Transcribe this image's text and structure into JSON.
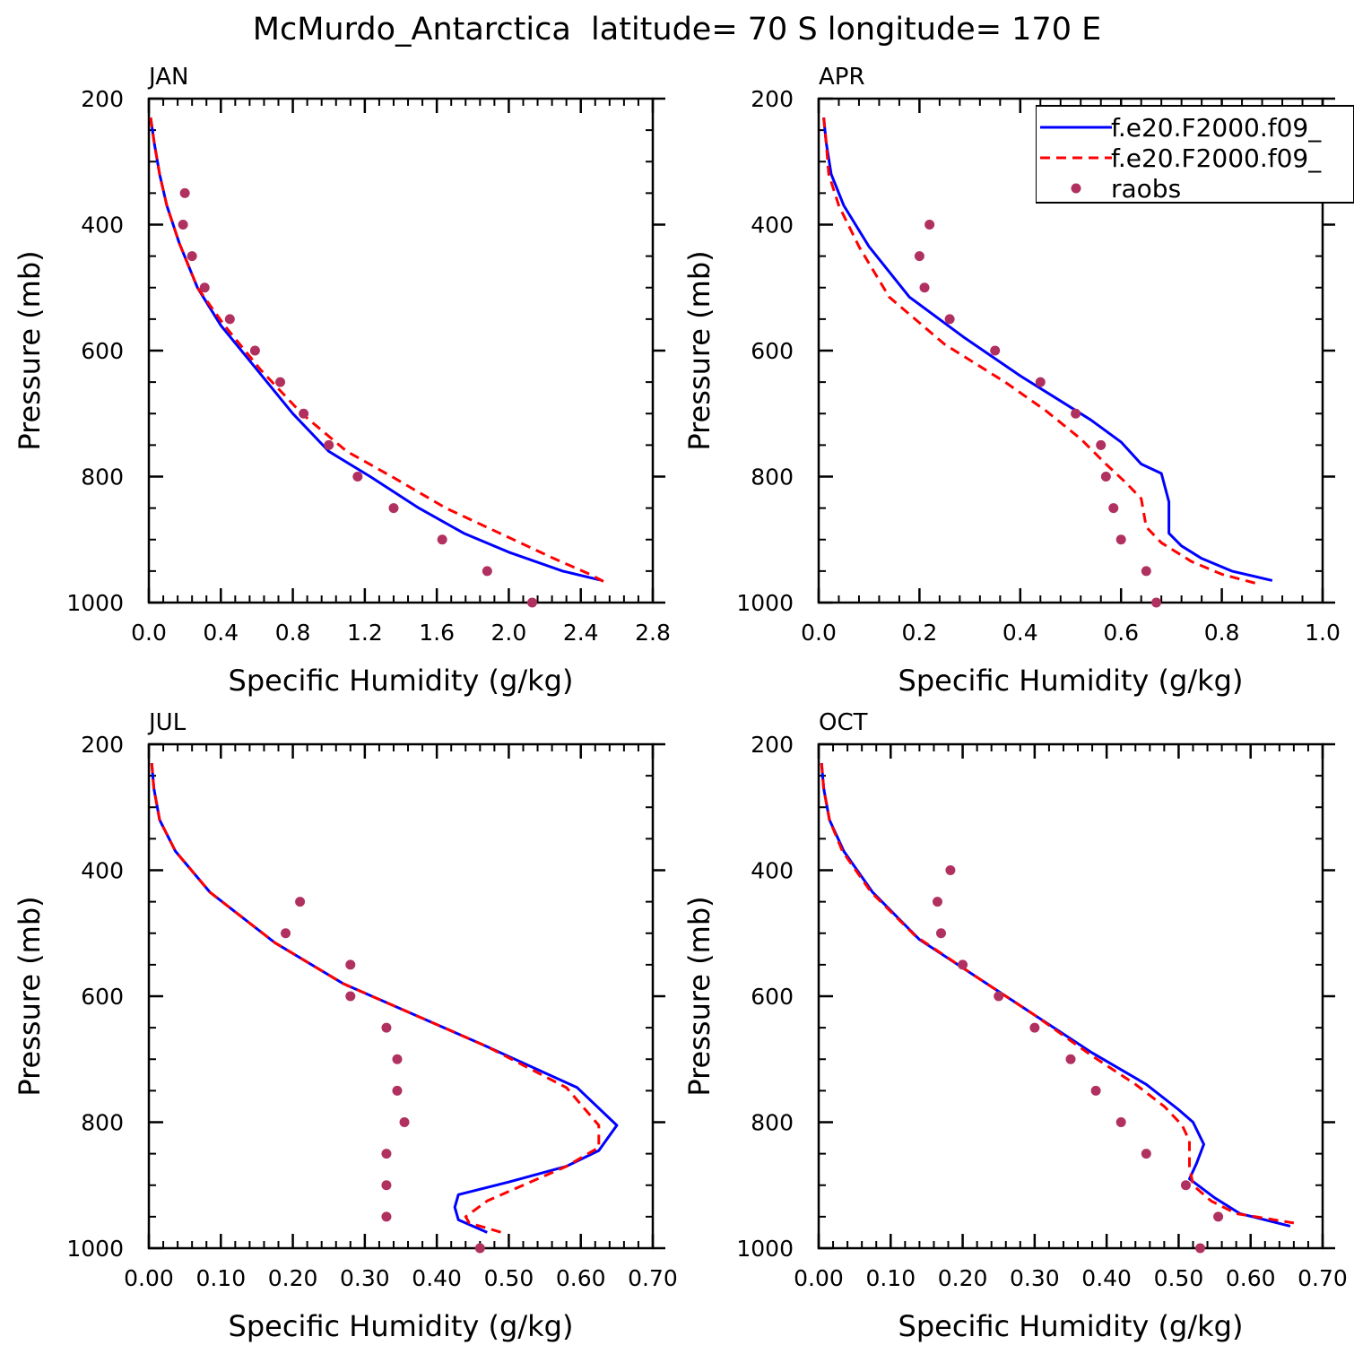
{
  "figure": {
    "title": "McMurdo_Antarctica  latitude= 70 S longitude= 170 E"
  },
  "legend": {
    "entries": [
      {
        "label": "f.e20.F2000.f09_",
        "style": "solid",
        "color": "#0000ff"
      },
      {
        "label": "f.e20.F2000.f09_",
        "style": "dashed",
        "color": "#ff0000"
      },
      {
        "label": "raobs",
        "style": "dot",
        "color": "#b03060"
      }
    ]
  },
  "colors": {
    "model1": "#0000ff",
    "model2": "#ff0000",
    "raobs": "#b03060"
  },
  "chart_data": [
    {
      "type": "line",
      "panel": "JAN",
      "xlabel": "Specific Humidity (g/kg)",
      "ylabel": "Pressure (mb)",
      "xlim": [
        0,
        2.8
      ],
      "ylim": [
        200,
        1000
      ],
      "y_inverted": true,
      "xticks": [
        0,
        0.4,
        0.8,
        1.2,
        1.6,
        2.0,
        2.4,
        2.8
      ],
      "xtick_labels": [
        "0.0",
        "0.4",
        "0.8",
        "1.2",
        "1.6",
        "2.0",
        "2.4",
        "2.8"
      ],
      "yticks": [
        200,
        400,
        600,
        800,
        1000
      ],
      "ytick_labels": [
        "200",
        "400",
        "600",
        "800",
        "1000"
      ],
      "series": [
        {
          "name": "f.e20.F2000.f09_ (solid)",
          "points": [
            [
              0.01,
              230
            ],
            [
              0.03,
              270
            ],
            [
              0.06,
              320
            ],
            [
              0.1,
              370
            ],
            [
              0.17,
              430
            ],
            [
              0.27,
              500
            ],
            [
              0.4,
              560
            ],
            [
              0.6,
              630
            ],
            [
              0.8,
              700
            ],
            [
              1.0,
              760
            ],
            [
              1.23,
              800
            ],
            [
              1.5,
              850
            ],
            [
              1.75,
              890
            ],
            [
              2.0,
              920
            ],
            [
              2.3,
              950
            ],
            [
              2.52,
              965
            ]
          ]
        },
        {
          "name": "f.e20.F2000.f09_ (dashed)",
          "points": [
            [
              0.01,
              230
            ],
            [
              0.03,
              270
            ],
            [
              0.06,
              320
            ],
            [
              0.1,
              370
            ],
            [
              0.17,
              430
            ],
            [
              0.27,
              500
            ],
            [
              0.42,
              560
            ],
            [
              0.62,
              630
            ],
            [
              0.85,
              700
            ],
            [
              1.1,
              760
            ],
            [
              1.35,
              800
            ],
            [
              1.65,
              850
            ],
            [
              1.95,
              890
            ],
            [
              2.25,
              930
            ],
            [
              2.45,
              955
            ],
            [
              2.55,
              970
            ]
          ]
        },
        {
          "name": "raobs",
          "points": [
            [
              0.2,
              350
            ],
            [
              0.19,
              400
            ],
            [
              0.24,
              450
            ],
            [
              0.31,
              500
            ],
            [
              0.45,
              550
            ],
            [
              0.59,
              600
            ],
            [
              0.73,
              650
            ],
            [
              0.86,
              700
            ],
            [
              1.0,
              750
            ],
            [
              1.16,
              800
            ],
            [
              1.36,
              850
            ],
            [
              1.63,
              900
            ],
            [
              1.88,
              950
            ],
            [
              2.13,
              1000
            ]
          ]
        }
      ]
    },
    {
      "type": "line",
      "panel": "APR",
      "xlabel": "Specific Humidity (g/kg)",
      "ylabel": "Pressure (mb)",
      "xlim": [
        0,
        1.0
      ],
      "ylim": [
        200,
        1000
      ],
      "y_inverted": true,
      "xticks": [
        0,
        0.2,
        0.4,
        0.6,
        0.8,
        1.0
      ],
      "xtick_labels": [
        "0.0",
        "0.2",
        "0.4",
        "0.6",
        "0.8",
        "1.0"
      ],
      "yticks": [
        200,
        400,
        600,
        800,
        1000
      ],
      "ytick_labels": [
        "200",
        "400",
        "600",
        "800",
        "1000"
      ],
      "series": [
        {
          "name": "f.e20.F2000.f09_ (solid)",
          "points": [
            [
              0.01,
              230
            ],
            [
              0.015,
              270
            ],
            [
              0.025,
              320
            ],
            [
              0.05,
              370
            ],
            [
              0.1,
              435
            ],
            [
              0.18,
              515
            ],
            [
              0.29,
              580
            ],
            [
              0.4,
              640
            ],
            [
              0.48,
              680
            ],
            [
              0.54,
              710
            ],
            [
              0.6,
              745
            ],
            [
              0.64,
              780
            ],
            [
              0.68,
              795
            ],
            [
              0.695,
              840
            ],
            [
              0.695,
              890
            ],
            [
              0.72,
              910
            ],
            [
              0.76,
              930
            ],
            [
              0.82,
              950
            ],
            [
              0.9,
              965
            ]
          ]
        },
        {
          "name": "f.e20.F2000.f09_ (dashed)",
          "points": [
            [
              0.01,
              230
            ],
            [
              0.015,
              270
            ],
            [
              0.02,
              320
            ],
            [
              0.04,
              370
            ],
            [
              0.08,
              435
            ],
            [
              0.14,
              515
            ],
            [
              0.25,
              590
            ],
            [
              0.37,
              650
            ],
            [
              0.45,
              695
            ],
            [
              0.52,
              740
            ],
            [
              0.57,
              780
            ],
            [
              0.61,
              810
            ],
            [
              0.64,
              835
            ],
            [
              0.65,
              880
            ],
            [
              0.68,
              905
            ],
            [
              0.74,
              935
            ],
            [
              0.8,
              955
            ],
            [
              0.87,
              970
            ]
          ]
        },
        {
          "name": "raobs",
          "points": [
            [
              0.22,
              400
            ],
            [
              0.2,
              450
            ],
            [
              0.21,
              500
            ],
            [
              0.26,
              550
            ],
            [
              0.35,
              600
            ],
            [
              0.44,
              650
            ],
            [
              0.51,
              700
            ],
            [
              0.56,
              750
            ],
            [
              0.57,
              800
            ],
            [
              0.585,
              850
            ],
            [
              0.6,
              900
            ],
            [
              0.65,
              950
            ],
            [
              0.67,
              1000
            ]
          ]
        }
      ]
    },
    {
      "type": "line",
      "panel": "JUL",
      "xlabel": "Specific Humidity (g/kg)",
      "ylabel": "Pressure (mb)",
      "xlim": [
        0,
        0.7
      ],
      "ylim": [
        200,
        1000
      ],
      "y_inverted": true,
      "xticks": [
        0,
        0.1,
        0.2,
        0.3,
        0.4,
        0.5,
        0.6,
        0.7
      ],
      "xtick_labels": [
        "0.00",
        "0.10",
        "0.20",
        "0.30",
        "0.40",
        "0.50",
        "0.60",
        "0.70"
      ],
      "yticks": [
        200,
        400,
        600,
        800,
        1000
      ],
      "ytick_labels": [
        "200",
        "400",
        "600",
        "800",
        "1000"
      ],
      "series": [
        {
          "name": "f.e20.F2000.f09_ (solid)",
          "points": [
            [
              0.004,
              230
            ],
            [
              0.007,
              270
            ],
            [
              0.015,
              320
            ],
            [
              0.037,
              370
            ],
            [
              0.085,
              435
            ],
            [
              0.175,
              515
            ],
            [
              0.27,
              580
            ],
            [
              0.37,
              630
            ],
            [
              0.47,
              680
            ],
            [
              0.595,
              745
            ],
            [
              0.65,
              805
            ],
            [
              0.625,
              845
            ],
            [
              0.58,
              870
            ],
            [
              0.5,
              895
            ],
            [
              0.43,
              915
            ],
            [
              0.425,
              935
            ],
            [
              0.43,
              955
            ],
            [
              0.47,
              975
            ]
          ]
        },
        {
          "name": "f.e20.F2000.f09_ (dashed)",
          "points": [
            [
              0.004,
              230
            ],
            [
              0.007,
              270
            ],
            [
              0.015,
              320
            ],
            [
              0.037,
              370
            ],
            [
              0.085,
              435
            ],
            [
              0.175,
              515
            ],
            [
              0.27,
              580
            ],
            [
              0.37,
              630
            ],
            [
              0.47,
              680
            ],
            [
              0.58,
              745
            ],
            [
              0.625,
              805
            ],
            [
              0.625,
              840
            ],
            [
              0.58,
              870
            ],
            [
              0.53,
              895
            ],
            [
              0.47,
              925
            ],
            [
              0.44,
              950
            ],
            [
              0.445,
              960
            ],
            [
              0.49,
              975
            ]
          ]
        },
        {
          "name": "raobs",
          "points": [
            [
              0.21,
              450
            ],
            [
              0.19,
              500
            ],
            [
              0.28,
              550
            ],
            [
              0.28,
              600
            ],
            [
              0.33,
              650
            ],
            [
              0.345,
              700
            ],
            [
              0.345,
              750
            ],
            [
              0.355,
              800
            ],
            [
              0.33,
              850
            ],
            [
              0.33,
              900
            ],
            [
              0.33,
              950
            ],
            [
              0.46,
              1000
            ]
          ]
        }
      ]
    },
    {
      "type": "line",
      "panel": "OCT",
      "xlabel": "Specific Humidity (g/kg)",
      "ylabel": "Pressure (mb)",
      "xlim": [
        0,
        0.7
      ],
      "ylim": [
        200,
        1000
      ],
      "y_inverted": true,
      "xticks": [
        0,
        0.1,
        0.2,
        0.3,
        0.4,
        0.5,
        0.6,
        0.7
      ],
      "xtick_labels": [
        "0.00",
        "0.10",
        "0.20",
        "0.30",
        "0.40",
        "0.50",
        "0.60",
        "0.70"
      ],
      "yticks": [
        200,
        400,
        600,
        800,
        1000
      ],
      "ytick_labels": [
        "200",
        "400",
        "600",
        "800",
        "1000"
      ],
      "series": [
        {
          "name": "f.e20.F2000.f09_ (solid)",
          "points": [
            [
              0.004,
              230
            ],
            [
              0.007,
              270
            ],
            [
              0.015,
              320
            ],
            [
              0.035,
              370
            ],
            [
              0.075,
              435
            ],
            [
              0.14,
              510
            ],
            [
              0.22,
              570
            ],
            [
              0.3,
              630
            ],
            [
              0.38,
              690
            ],
            [
              0.455,
              740
            ],
            [
              0.5,
              780
            ],
            [
              0.52,
              800
            ],
            [
              0.535,
              835
            ],
            [
              0.525,
              865
            ],
            [
              0.515,
              890
            ],
            [
              0.55,
              920
            ],
            [
              0.585,
              945
            ],
            [
              0.655,
              965
            ]
          ]
        },
        {
          "name": "f.e20.F2000.f09_ (dashed)",
          "points": [
            [
              0.004,
              230
            ],
            [
              0.007,
              270
            ],
            [
              0.015,
              320
            ],
            [
              0.033,
              370
            ],
            [
              0.073,
              435
            ],
            [
              0.135,
              505
            ],
            [
              0.22,
              570
            ],
            [
              0.3,
              630
            ],
            [
              0.38,
              695
            ],
            [
              0.44,
              740
            ],
            [
              0.48,
              775
            ],
            [
              0.505,
              805
            ],
            [
              0.515,
              830
            ],
            [
              0.515,
              870
            ],
            [
              0.52,
              900
            ],
            [
              0.545,
              925
            ],
            [
              0.58,
              945
            ],
            [
              0.66,
              960
            ]
          ]
        },
        {
          "name": "raobs",
          "points": [
            [
              0.183,
              400
            ],
            [
              0.165,
              450
            ],
            [
              0.17,
              500
            ],
            [
              0.2,
              550
            ],
            [
              0.25,
              600
            ],
            [
              0.3,
              650
            ],
            [
              0.35,
              700
            ],
            [
              0.385,
              750
            ],
            [
              0.42,
              800
            ],
            [
              0.455,
              850
            ],
            [
              0.51,
              900
            ],
            [
              0.555,
              950
            ],
            [
              0.53,
              1000
            ]
          ]
        }
      ]
    }
  ]
}
